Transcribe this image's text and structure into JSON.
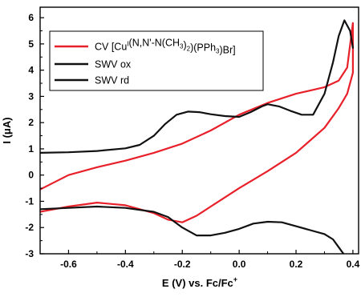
{
  "chart_data": {
    "type": "line",
    "xlabel": {
      "main": "E (V) vs. Fc/Fc",
      "sup": "+"
    },
    "ylabel": {
      "main": "I (",
      "greek": "μ",
      "tail": "A)"
    },
    "xlim": [
      -0.7,
      0.42
    ],
    "ylim": [
      -3,
      6.4
    ],
    "xticks": [
      -0.6,
      -0.4,
      -0.2,
      0.0,
      0.2,
      0.4
    ],
    "xtick_labels": [
      "-0.6",
      "-0.4",
      "-0.2",
      "0.0",
      "0.2",
      "0.4"
    ],
    "yticks": [
      -3,
      -2,
      -1,
      0,
      1,
      2,
      3,
      4,
      5,
      6
    ],
    "ytick_labels": [
      "-3",
      "-2",
      "-1",
      "0",
      "1",
      "2",
      "3",
      "4",
      "5",
      "6"
    ],
    "grid": false,
    "legend_position": "top-left",
    "series": [
      {
        "name": "CV [Cu(I)(N,N'-N(CH3)2)(PPh3)Br]",
        "legend_parts": [
          {
            "t": "CV [Cu"
          },
          {
            "t": "I",
            "sup": true
          },
          {
            "t": "(N,N'-N(CH"
          },
          {
            "t": "3",
            "sub": true
          },
          {
            "t": ")"
          },
          {
            "t": "2",
            "sub": true
          },
          {
            "t": ")(PPh"
          },
          {
            "t": "3",
            "sub": true
          },
          {
            "t": ")Br]"
          }
        ],
        "color": "#e8202a",
        "x": [
          -0.7,
          -0.6,
          -0.5,
          -0.4,
          -0.3,
          -0.2,
          -0.1,
          0.0,
          0.1,
          0.2,
          0.3,
          0.35,
          0.38,
          0.4,
          0.4,
          0.38,
          0.35,
          0.3,
          0.2,
          0.1,
          0.0,
          -0.1,
          -0.15,
          -0.2,
          -0.25,
          -0.3,
          -0.4,
          -0.5,
          -0.6,
          -0.7
        ],
        "y": [
          -0.55,
          0.0,
          0.3,
          0.55,
          0.85,
          1.2,
          1.7,
          2.3,
          2.75,
          3.1,
          3.35,
          3.6,
          4.1,
          5.8,
          3.9,
          3.1,
          2.55,
          1.8,
          0.85,
          0.15,
          -0.5,
          -1.2,
          -1.55,
          -1.8,
          -1.7,
          -1.45,
          -1.15,
          -1.05,
          -1.2,
          -1.4
        ]
      },
      {
        "name": "SWV ox",
        "color": "#111111",
        "x": [
          -0.7,
          -0.6,
          -0.5,
          -0.4,
          -0.35,
          -0.3,
          -0.26,
          -0.22,
          -0.18,
          -0.14,
          -0.1,
          -0.05,
          0.0,
          0.04,
          0.08,
          0.1,
          0.14,
          0.18,
          0.22,
          0.26,
          0.3,
          0.33,
          0.35,
          0.37,
          0.39,
          0.4
        ],
        "y": [
          0.85,
          0.87,
          0.92,
          1.02,
          1.15,
          1.5,
          1.95,
          2.3,
          2.42,
          2.4,
          2.32,
          2.25,
          2.22,
          2.4,
          2.62,
          2.7,
          2.62,
          2.45,
          2.3,
          2.3,
          3.1,
          4.3,
          5.3,
          5.9,
          5.5,
          4.85
        ]
      },
      {
        "name": "SWV rd",
        "color": "#111111",
        "x": [
          -0.7,
          -0.6,
          -0.5,
          -0.4,
          -0.3,
          -0.25,
          -0.2,
          -0.15,
          -0.1,
          -0.05,
          0.0,
          0.05,
          0.1,
          0.15,
          0.2,
          0.25,
          0.3,
          0.33,
          0.35,
          0.37
        ],
        "y": [
          -1.3,
          -1.25,
          -1.2,
          -1.25,
          -1.4,
          -1.6,
          -2.0,
          -2.3,
          -2.3,
          -2.2,
          -2.05,
          -1.85,
          -1.78,
          -1.8,
          -1.95,
          -2.1,
          -2.25,
          -2.45,
          -2.75,
          -3.05
        ]
      }
    ]
  }
}
